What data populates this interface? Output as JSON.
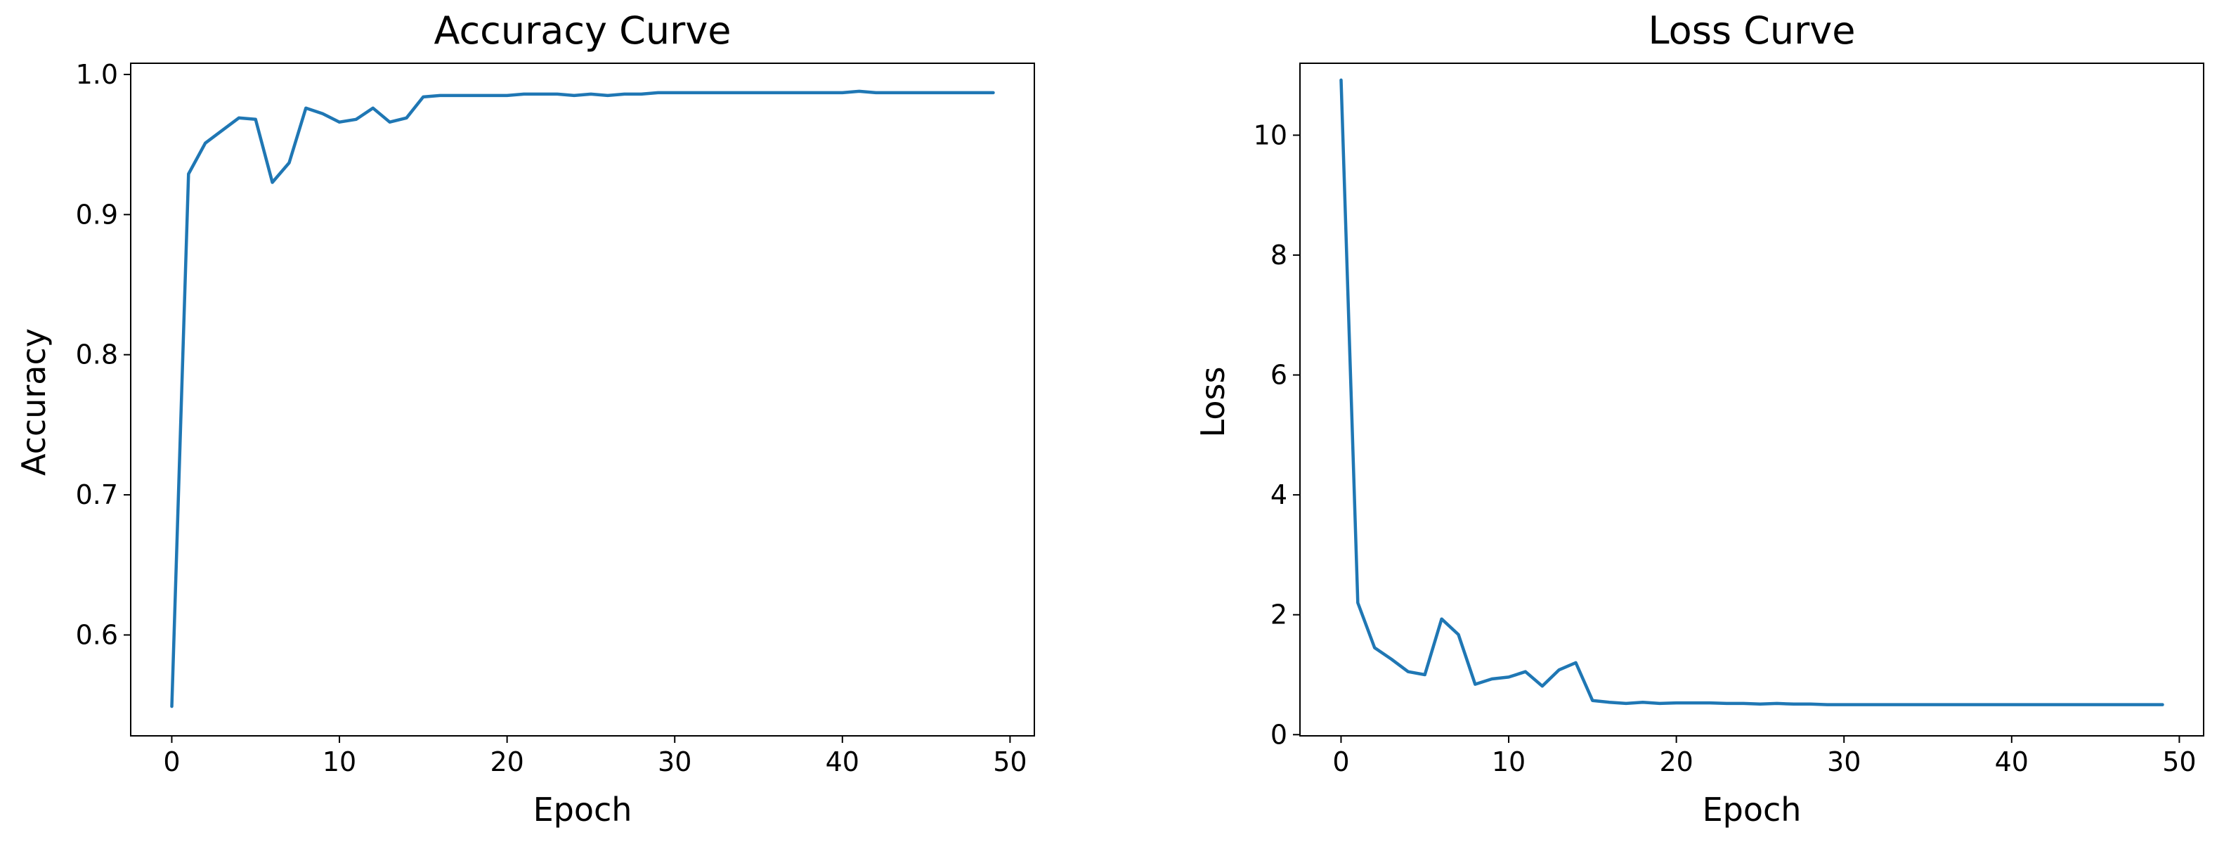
{
  "chart_data": [
    {
      "type": "line",
      "title": "Accuracy Curve",
      "xlabel": "Epoch",
      "ylabel": "Accuracy",
      "xlim": [
        -2.45,
        51.45
      ],
      "ylim": [
        0.528,
        1.008
      ],
      "xticks": [
        0,
        10,
        20,
        30,
        40,
        50
      ],
      "yticks": [
        0.6,
        0.7,
        0.8,
        0.9,
        1.0
      ],
      "xtick_labels": [
        "0",
        "10",
        "20",
        "30",
        "40",
        "50"
      ],
      "ytick_labels": [
        "0.6",
        "0.7",
        "0.8",
        "0.9",
        "1.0"
      ],
      "grid": false,
      "color": "#1f77b4",
      "x": [
        0,
        1,
        2,
        3,
        4,
        5,
        6,
        7,
        8,
        9,
        10,
        11,
        12,
        13,
        14,
        15,
        16,
        17,
        18,
        19,
        20,
        21,
        22,
        23,
        24,
        25,
        26,
        27,
        28,
        29,
        30,
        31,
        32,
        33,
        34,
        35,
        36,
        37,
        38,
        39,
        40,
        41,
        42,
        43,
        44,
        45,
        46,
        47,
        48,
        49
      ],
      "y": [
        0.549,
        0.929,
        0.951,
        0.96,
        0.969,
        0.968,
        0.923,
        0.937,
        0.976,
        0.972,
        0.966,
        0.968,
        0.976,
        0.966,
        0.969,
        0.984,
        0.985,
        0.985,
        0.985,
        0.985,
        0.985,
        0.986,
        0.986,
        0.986,
        0.985,
        0.986,
        0.985,
        0.986,
        0.986,
        0.987,
        0.987,
        0.987,
        0.987,
        0.987,
        0.987,
        0.987,
        0.987,
        0.987,
        0.987,
        0.987,
        0.987,
        0.988,
        0.987,
        0.987,
        0.987,
        0.987,
        0.987,
        0.987,
        0.987,
        0.987
      ]
    },
    {
      "type": "line",
      "title": "Loss Curve",
      "xlabel": "Epoch",
      "ylabel": "Loss",
      "xlim": [
        -2.45,
        51.45
      ],
      "ylim": [
        -0.02,
        11.2
      ],
      "xticks": [
        0,
        10,
        20,
        30,
        40,
        50
      ],
      "yticks": [
        0,
        2,
        4,
        6,
        8,
        10
      ],
      "xtick_labels": [
        "0",
        "10",
        "20",
        "30",
        "40",
        "50"
      ],
      "ytick_labels": [
        "0",
        "2",
        "4",
        "6",
        "8",
        "10"
      ],
      "grid": false,
      "color": "#1f77b4",
      "x": [
        0,
        1,
        2,
        3,
        4,
        5,
        6,
        7,
        8,
        9,
        10,
        11,
        12,
        13,
        14,
        15,
        16,
        17,
        18,
        19,
        20,
        21,
        22,
        23,
        24,
        25,
        26,
        27,
        28,
        29,
        30,
        31,
        32,
        33,
        34,
        35,
        36,
        37,
        38,
        39,
        40,
        41,
        42,
        43,
        44,
        45,
        46,
        47,
        48,
        49
      ],
      "y": [
        10.92,
        2.2,
        1.45,
        1.26,
        1.05,
        1.0,
        1.93,
        1.67,
        0.84,
        0.93,
        0.96,
        1.05,
        0.81,
        1.08,
        1.2,
        0.57,
        0.54,
        0.52,
        0.54,
        0.52,
        0.53,
        0.53,
        0.53,
        0.52,
        0.52,
        0.51,
        0.52,
        0.51,
        0.51,
        0.5,
        0.5,
        0.5,
        0.5,
        0.5,
        0.5,
        0.5,
        0.5,
        0.5,
        0.5,
        0.5,
        0.5,
        0.5,
        0.5,
        0.5,
        0.5,
        0.5,
        0.5,
        0.5,
        0.5,
        0.5
      ]
    }
  ]
}
